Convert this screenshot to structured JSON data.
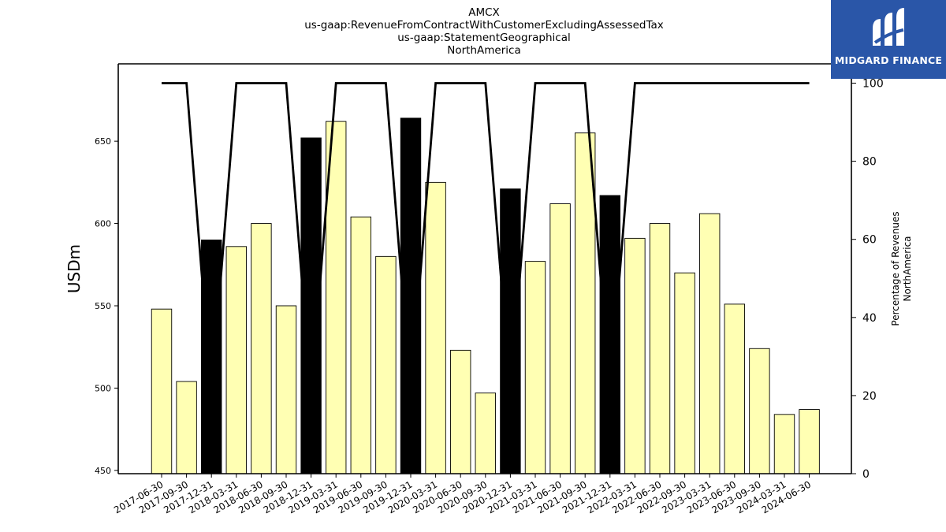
{
  "chart_data": {
    "type": "bar",
    "title_lines": [
      "AMCX",
      "us-gaap:RevenueFromContractWithCustomerExcludingAssessedTax",
      "us-gaap:StatementGeographical",
      "NorthAmerica"
    ],
    "ylabel": "USDm",
    "y2label_lines": [
      "Percentage of Revenues",
      "NorthAmerica"
    ],
    "categories": [
      "2017-06-30",
      "2017-09-30",
      "2017-12-31",
      "2018-03-31",
      "2018-06-30",
      "2018-09-30",
      "2018-12-31",
      "2019-03-31",
      "2019-06-30",
      "2019-09-30",
      "2019-12-31",
      "2020-03-31",
      "2020-06-30",
      "2020-09-30",
      "2020-12-31",
      "2021-03-31",
      "2021-06-30",
      "2021-09-30",
      "2021-12-31",
      "2022-03-31",
      "2022-06-30",
      "2022-09-30",
      "2023-03-31",
      "2023-06-30",
      "2023-09-30",
      "2024-03-31",
      "2024-06-30"
    ],
    "bar_categories": [
      "2017-06-30",
      "2017-09-30",
      "2017-12-31",
      "2018-03-31",
      "2018-06-30",
      "2018-09-30",
      "2018-12-31",
      "2019-03-31",
      "2019-06-30",
      "2019-09-30",
      "2019-12-31",
      "2020-03-31",
      "2020-06-30",
      "2020-09-30",
      "2020-12-31",
      "2021-03-31",
      "2021-06-30",
      "2021-09-30",
      "2021-12-31",
      "2022-03-31",
      "2022-06-30",
      "2022-09-30",
      "2023-03-31",
      "2023-06-30",
      "2023-09-30",
      "2024-03-31",
      "2024-06-30"
    ],
    "series": [
      {
        "type": "bar",
        "values": [
          548,
          504,
          590,
          586,
          600,
          550,
          652,
          662,
          604,
          580,
          664,
          625,
          523,
          497,
          621,
          577,
          612,
          655,
          617,
          591,
          600,
          570,
          606,
          551,
          524,
          484,
          487
        ],
        "highlight": [
          false,
          false,
          true,
          false,
          false,
          false,
          true,
          false,
          false,
          false,
          true,
          false,
          false,
          false,
          true,
          false,
          false,
          false,
          true,
          false,
          false,
          false,
          false,
          false,
          false,
          false,
          false
        ]
      },
      {
        "type": "line",
        "axis": "right",
        "values": [
          100,
          100,
          20,
          100,
          100,
          100,
          20,
          100,
          100,
          100,
          20,
          100,
          100,
          100,
          20,
          100,
          100,
          100,
          20,
          100,
          100,
          100,
          100,
          100,
          100,
          100,
          100
        ]
      }
    ],
    "ylim": [
      448,
      697
    ],
    "yticks": [
      450,
      500,
      550,
      600,
      650
    ],
    "y2lim": [
      0,
      100
    ],
    "y2ticks": [
      0,
      20,
      40,
      60,
      80,
      100
    ],
    "colors": {
      "bar": "#ffffb3",
      "bar_highlight": "#000000",
      "line": "#000000"
    }
  },
  "logo": {
    "text": "MIDGARD FINANCE"
  }
}
